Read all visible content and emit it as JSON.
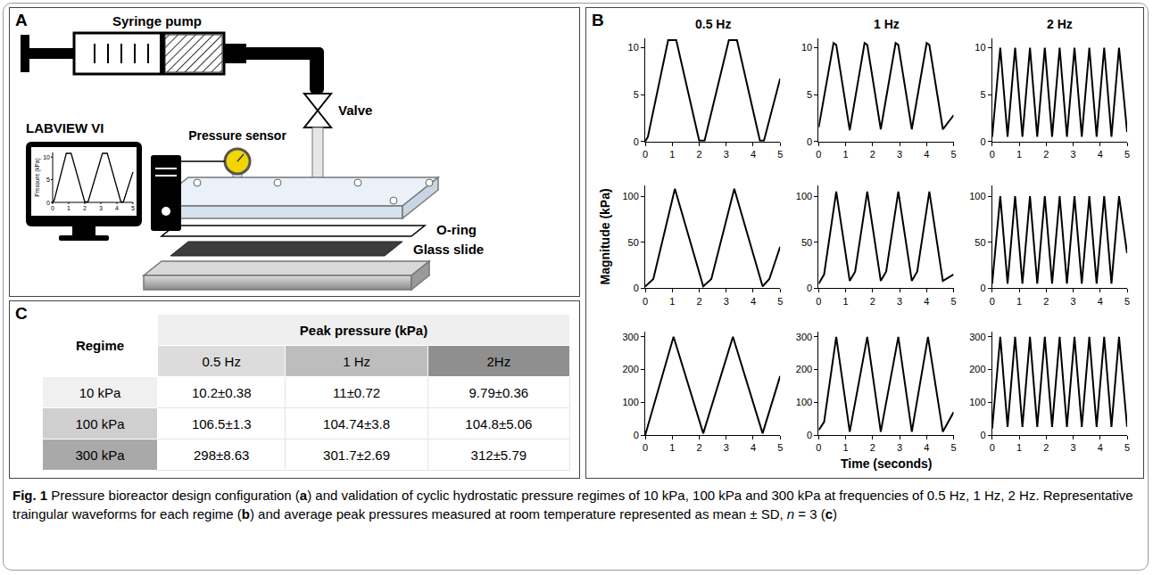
{
  "panels": {
    "A": {
      "label": "A",
      "syringe": "Syringe pump",
      "valve": "Valve",
      "sensor": "Pressure sensor",
      "software": "LABVIEW VI",
      "o_ring": "O-ring",
      "glass": "Glass slide",
      "monitor_chart": {
        "type": "line",
        "y_label": "Pressure (kPa)",
        "xlim": [
          0,
          5
        ],
        "ylim": [
          0,
          11
        ],
        "xticks": [
          0,
          1,
          2,
          3,
          4,
          5
        ],
        "yticks": [
          0,
          5,
          10
        ],
        "color": "#000000"
      }
    },
    "B": {
      "label": "B",
      "column_titles": [
        "0.5 Hz",
        "1 Hz",
        "2 Hz"
      ],
      "y_label": "Magnitude (kPa)",
      "x_label": "Time (seconds)"
    },
    "C": {
      "label": "C",
      "header": {
        "regime": "Regime",
        "group": "Peak pressure (kPa)",
        "columns": [
          "0.5 Hz",
          "1 Hz",
          "2Hz"
        ]
      },
      "rows": [
        {
          "regime": "10 kPa",
          "cells": [
            "10.2±0.38",
            "11±0.72",
            "9.79±0.36"
          ]
        },
        {
          "regime": "100 kPa",
          "cells": [
            "106.5±1.3",
            "104.74±3.8",
            "104.8±5.06"
          ]
        },
        {
          "regime": "300 kPa",
          "cells": [
            "298±8.63",
            "301.7±2.69",
            "312±5.79"
          ]
        }
      ]
    }
  },
  "chart_data": [
    {
      "type": "line",
      "color": "#000000",
      "grid": false,
      "xlim": [
        0,
        5
      ],
      "xticks": [
        0,
        1,
        2,
        3,
        4,
        5
      ],
      "ylim": [
        0,
        11
      ],
      "yticks": [
        0,
        5,
        10
      ],
      "x": [
        0,
        0.1,
        0.85,
        1.15,
        2.0,
        2.2,
        3.1,
        3.4,
        4.25,
        4.4,
        5
      ],
      "values": [
        0,
        0.5,
        10.8,
        10.8,
        0.1,
        0.1,
        10.8,
        10.8,
        0.1,
        0.1,
        6.7
      ]
    },
    {
      "type": "line",
      "color": "#000000",
      "grid": false,
      "xlim": [
        0,
        5
      ],
      "xticks": [
        0,
        1,
        2,
        3,
        4,
        5
      ],
      "ylim": [
        0,
        11
      ],
      "yticks": [
        0,
        5,
        10
      ],
      "x": [
        0,
        0.55,
        0.65,
        1.15,
        1.7,
        1.8,
        2.3,
        2.85,
        2.95,
        3.45,
        4.0,
        4.1,
        4.6,
        5
      ],
      "values": [
        1.5,
        10.5,
        10.3,
        1.2,
        10.5,
        10.3,
        1.3,
        10.5,
        10.3,
        1.3,
        10.5,
        10.3,
        1.3,
        2.8
      ]
    },
    {
      "type": "line",
      "color": "#000000",
      "grid": false,
      "xlim": [
        0,
        5
      ],
      "xticks": [
        0,
        1,
        2,
        3,
        4,
        5
      ],
      "ylim": [
        0,
        11
      ],
      "yticks": [
        0,
        5,
        10
      ],
      "x": [
        0,
        0.3,
        0.57,
        0.85,
        1.12,
        1.4,
        1.67,
        1.95,
        2.22,
        2.5,
        2.77,
        3.05,
        3.32,
        3.6,
        3.87,
        4.15,
        4.42,
        4.7,
        5
      ],
      "values": [
        0.5,
        10,
        0.5,
        10,
        0.5,
        10,
        0.5,
        10,
        0.5,
        10,
        0.5,
        10,
        0.5,
        10,
        0.5,
        10,
        0.5,
        10,
        1
      ]
    },
    {
      "type": "line",
      "color": "#000000",
      "grid": false,
      "xlim": [
        0,
        5
      ],
      "xticks": [
        0,
        1,
        2,
        3,
        4,
        5
      ],
      "ylim": [
        0,
        112
      ],
      "yticks": [
        0,
        50,
        100
      ],
      "x": [
        0,
        0.3,
        1.1,
        2.15,
        2.45,
        3.3,
        4.35,
        4.6,
        5
      ],
      "values": [
        2,
        10,
        108,
        2,
        10,
        108,
        2,
        10,
        45
      ]
    },
    {
      "type": "line",
      "color": "#000000",
      "grid": false,
      "xlim": [
        0,
        5
      ],
      "xticks": [
        0,
        1,
        2,
        3,
        4,
        5
      ],
      "ylim": [
        0,
        112
      ],
      "yticks": [
        0,
        50,
        100
      ],
      "x": [
        0,
        0.2,
        0.65,
        1.15,
        1.35,
        1.8,
        2.3,
        2.5,
        2.95,
        3.45,
        3.65,
        4.1,
        4.6,
        5
      ],
      "values": [
        5,
        15,
        105,
        8,
        18,
        105,
        8,
        18,
        105,
        8,
        18,
        105,
        8,
        15
      ]
    },
    {
      "type": "line",
      "color": "#000000",
      "grid": false,
      "xlim": [
        0,
        5
      ],
      "xticks": [
        0,
        1,
        2,
        3,
        4,
        5
      ],
      "ylim": [
        0,
        112
      ],
      "yticks": [
        0,
        50,
        100
      ],
      "x": [
        0,
        0.3,
        0.57,
        0.85,
        1.12,
        1.4,
        1.67,
        1.95,
        2.22,
        2.5,
        2.77,
        3.05,
        3.32,
        3.6,
        3.87,
        4.15,
        4.42,
        4.7,
        5
      ],
      "values": [
        5,
        100,
        5,
        100,
        5,
        100,
        5,
        100,
        5,
        100,
        5,
        100,
        5,
        100,
        5,
        100,
        5,
        100,
        38
      ]
    },
    {
      "type": "line",
      "color": "#000000",
      "grid": false,
      "xlim": [
        0,
        5
      ],
      "xticks": [
        0,
        1,
        2,
        3,
        4,
        5
      ],
      "ylim": [
        0,
        315
      ],
      "yticks": [
        0,
        100,
        200,
        300
      ],
      "x": [
        0,
        1.05,
        2.15,
        3.25,
        4.35,
        5
      ],
      "values": [
        0,
        300,
        5,
        300,
        5,
        180
      ]
    },
    {
      "type": "line",
      "color": "#000000",
      "grid": false,
      "xlim": [
        0,
        5
      ],
      "xticks": [
        0,
        1,
        2,
        3,
        4,
        5
      ],
      "ylim": [
        0,
        315
      ],
      "yticks": [
        0,
        100,
        200,
        300
      ],
      "x": [
        0,
        0.2,
        0.65,
        1.15,
        1.8,
        2.3,
        2.95,
        3.45,
        4.05,
        4.6,
        5
      ],
      "values": [
        15,
        40,
        300,
        10,
        300,
        10,
        300,
        10,
        300,
        10,
        70
      ]
    },
    {
      "type": "line",
      "color": "#000000",
      "grid": false,
      "xlim": [
        0,
        5
      ],
      "xticks": [
        0,
        1,
        2,
        3,
        4,
        5
      ],
      "ylim": [
        0,
        315
      ],
      "yticks": [
        0,
        100,
        200,
        300
      ],
      "x": [
        0,
        0.3,
        0.57,
        0.85,
        1.12,
        1.4,
        1.67,
        1.95,
        2.22,
        2.5,
        2.77,
        3.05,
        3.32,
        3.6,
        3.87,
        4.15,
        4.42,
        4.7,
        5
      ],
      "values": [
        20,
        300,
        25,
        300,
        25,
        300,
        25,
        300,
        25,
        300,
        25,
        300,
        25,
        300,
        25,
        300,
        25,
        300,
        25
      ]
    }
  ],
  "caption": {
    "label": "Fig. 1",
    "parts": [
      "Pressure bioreactor design configuration (",
      {
        "bold": "a"
      },
      ") and validation of cyclic hydrostatic pressure regimes of 10 kPa, 100 kPa and 300 kPa at frequencies of 0.5 Hz, 1 Hz, 2 Hz. Representative traingular waveforms for each regime (",
      {
        "bold": "b"
      },
      ") and average peak pressures measured at room temperature represented as mean ± SD, ",
      {
        "italic": "n"
      },
      " = 3 (",
      {
        "bold": "c"
      },
      ")"
    ]
  }
}
